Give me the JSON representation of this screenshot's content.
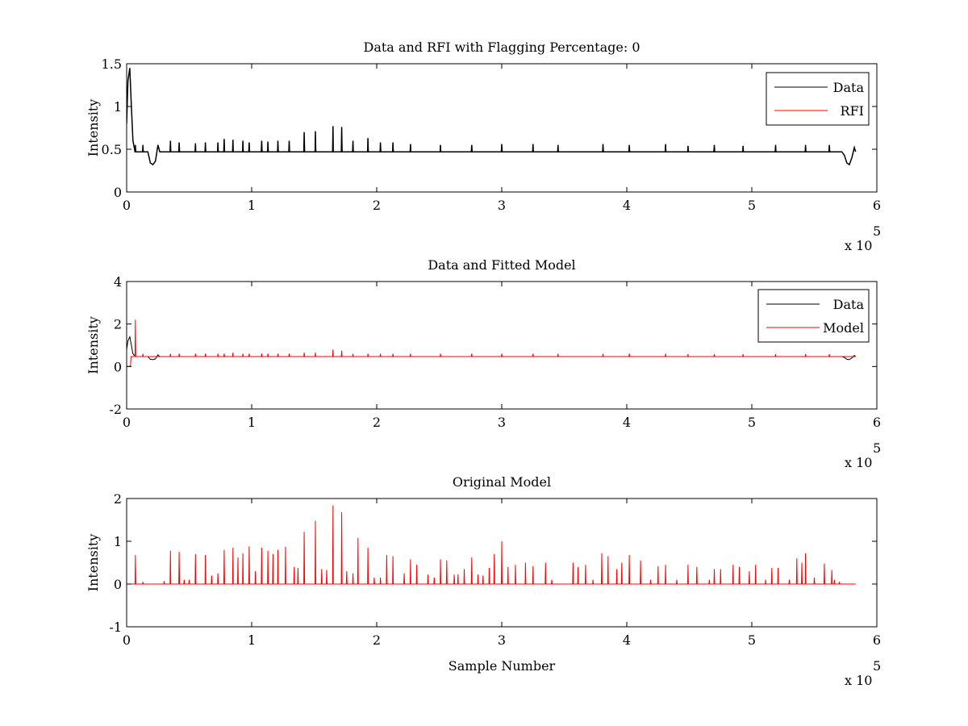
{
  "chart_data": [
    {
      "type": "line",
      "title": "Data and RFI with Flagging Percentage: 0",
      "xlabel": "",
      "ylabel": "Intensity",
      "xlim": [
        0,
        600000
      ],
      "ylim": [
        0,
        1.5
      ],
      "xticks": [
        0,
        100000,
        200000,
        300000,
        400000,
        500000,
        600000
      ],
      "xtick_labels": [
        "0",
        "1",
        "2",
        "3",
        "4",
        "5",
        "6"
      ],
      "yticks": [
        0,
        0.5,
        1,
        1.5
      ],
      "ytick_labels": [
        "0",
        "0.5",
        "1",
        "1.5"
      ],
      "x_exponent": {
        "base": "x 10",
        "power": "5"
      },
      "grid": false,
      "legend_position": "top-right",
      "baseline": 0.47,
      "x_end": 583000,
      "series": [
        {
          "name": "Data",
          "color": "#000000",
          "profile": [
            [
              0,
              0.8
            ],
            [
              1000,
              1.3
            ],
            [
              2500,
              1.45
            ],
            [
              3500,
              1.1
            ],
            [
              5000,
              0.6
            ],
            [
              7000,
              0.47
            ],
            [
              17000,
              0.47
            ],
            [
              19000,
              0.34
            ],
            [
              21000,
              0.32
            ],
            [
              23000,
              0.36
            ],
            [
              25000,
              0.55
            ],
            [
              26500,
              0.47
            ],
            [
              572000,
              0.47
            ],
            [
              574000,
              0.43
            ],
            [
              576000,
              0.34
            ],
            [
              578000,
              0.32
            ],
            [
              580000,
              0.4
            ],
            [
              582000,
              0.52
            ],
            [
              583000,
              0.47
            ]
          ],
          "spikes": [
            [
              7000,
              0.55
            ],
            [
              13000,
              0.55
            ],
            [
              35000,
              0.6
            ],
            [
              42000,
              0.58
            ],
            [
              55000,
              0.57
            ],
            [
              63000,
              0.58
            ],
            [
              73000,
              0.58
            ],
            [
              78000,
              0.62
            ],
            [
              85000,
              0.61
            ],
            [
              93000,
              0.6
            ],
            [
              98000,
              0.58
            ],
            [
              108000,
              0.6
            ],
            [
              113000,
              0.59
            ],
            [
              121000,
              0.6
            ],
            [
              130000,
              0.6
            ],
            [
              142000,
              0.7
            ],
            [
              151000,
              0.71
            ],
            [
              165000,
              0.77
            ],
            [
              172000,
              0.76
            ],
            [
              181000,
              0.6
            ],
            [
              193000,
              0.63
            ],
            [
              203000,
              0.58
            ],
            [
              213000,
              0.58
            ],
            [
              227000,
              0.56
            ],
            [
              251000,
              0.55
            ],
            [
              276000,
              0.55
            ],
            [
              300000,
              0.56
            ],
            [
              325000,
              0.56
            ],
            [
              345000,
              0.55
            ],
            [
              381000,
              0.56
            ],
            [
              402000,
              0.55
            ],
            [
              431000,
              0.56
            ],
            [
              449000,
              0.54
            ],
            [
              470000,
              0.55
            ],
            [
              493000,
              0.54
            ],
            [
              519000,
              0.55
            ],
            [
              543000,
              0.55
            ],
            [
              562000,
              0.55
            ]
          ]
        },
        {
          "name": "RFI",
          "color": "#ff0000",
          "profile": [],
          "spikes": []
        }
      ]
    },
    {
      "type": "line",
      "title": "Data and Fitted Model",
      "xlabel": "",
      "ylabel": "Intensity",
      "xlim": [
        0,
        600000
      ],
      "ylim": [
        -2,
        4
      ],
      "xticks": [
        0,
        100000,
        200000,
        300000,
        400000,
        500000,
        600000
      ],
      "xtick_labels": [
        "0",
        "1",
        "2",
        "3",
        "4",
        "5",
        "6"
      ],
      "yticks": [
        -2,
        0,
        2,
        4
      ],
      "ytick_labels": [
        "-2",
        "0",
        "2",
        "4"
      ],
      "x_exponent": {
        "base": "x 10",
        "power": "5"
      },
      "grid": false,
      "legend_position": "top-right",
      "baseline": 0.47,
      "x_end": 583000,
      "series": [
        {
          "name": "Data",
          "color": "#000000",
          "profile": [
            [
              0,
              0.8
            ],
            [
              1000,
              1.2
            ],
            [
              2500,
              1.4
            ],
            [
              3500,
              1.1
            ],
            [
              5000,
              0.6
            ],
            [
              7000,
              0.47
            ],
            [
              17000,
              0.47
            ],
            [
              19000,
              0.34
            ],
            [
              21000,
              0.32
            ],
            [
              23000,
              0.36
            ],
            [
              25000,
              0.55
            ],
            [
              26500,
              0.47
            ],
            [
              572000,
              0.47
            ],
            [
              574000,
              0.43
            ],
            [
              576000,
              0.34
            ],
            [
              578000,
              0.32
            ],
            [
              580000,
              0.4
            ],
            [
              582000,
              0.52
            ],
            [
              583000,
              0.47
            ]
          ],
          "spikes": []
        },
        {
          "name": "Model",
          "color": "#ff0000",
          "profile": [
            [
              0,
              0
            ],
            [
              3000,
              0
            ],
            [
              3500,
              0.47
            ],
            [
              583000,
              0.47
            ]
          ],
          "spikes": [
            [
              7000,
              2.2
            ],
            [
              13000,
              0.6
            ],
            [
              35000,
              0.6
            ],
            [
              42000,
              0.6
            ],
            [
              55000,
              0.6
            ],
            [
              63000,
              0.6
            ],
            [
              73000,
              0.6
            ],
            [
              78000,
              0.6
            ],
            [
              85000,
              0.65
            ],
            [
              93000,
              0.6
            ],
            [
              98000,
              0.6
            ],
            [
              108000,
              0.6
            ],
            [
              113000,
              0.6
            ],
            [
              121000,
              0.6
            ],
            [
              130000,
              0.6
            ],
            [
              142000,
              0.65
            ],
            [
              151000,
              0.65
            ],
            [
              165000,
              0.8
            ],
            [
              172000,
              0.75
            ],
            [
              181000,
              0.6
            ],
            [
              193000,
              0.6
            ],
            [
              203000,
              0.6
            ],
            [
              213000,
              0.6
            ],
            [
              227000,
              0.6
            ],
            [
              251000,
              0.6
            ],
            [
              276000,
              0.6
            ],
            [
              300000,
              0.6
            ],
            [
              325000,
              0.6
            ],
            [
              345000,
              0.6
            ],
            [
              381000,
              0.6
            ],
            [
              402000,
              0.6
            ],
            [
              431000,
              0.6
            ],
            [
              449000,
              0.58
            ],
            [
              470000,
              0.58
            ],
            [
              493000,
              0.58
            ],
            [
              519000,
              0.58
            ],
            [
              543000,
              0.58
            ],
            [
              562000,
              0.58
            ]
          ]
        }
      ]
    },
    {
      "type": "line",
      "title": "Original Model",
      "xlabel": "Sample Number",
      "ylabel": "Intensity",
      "xlim": [
        0,
        600000
      ],
      "ylim": [
        -1,
        2
      ],
      "xticks": [
        0,
        100000,
        200000,
        300000,
        400000,
        500000,
        600000
      ],
      "xtick_labels": [
        "0",
        "1",
        "2",
        "3",
        "4",
        "5",
        "6"
      ],
      "yticks": [
        -1,
        0,
        1,
        2
      ],
      "ytick_labels": [
        "-1",
        "0",
        "1",
        "2"
      ],
      "x_exponent": {
        "base": "x 10",
        "power": "5"
      },
      "grid": false,
      "legend_position": "",
      "baseline": 0,
      "x_end": 583000,
      "series": [
        {
          "name": "",
          "color": "#ff0000",
          "profile": [
            [
              0,
              0
            ],
            [
              583000,
              0
            ]
          ],
          "spikes": [
            [
              7000,
              0.68
            ],
            [
              13000,
              0.05
            ],
            [
              30000,
              0.07
            ],
            [
              35000,
              0.78
            ],
            [
              42000,
              0.75
            ],
            [
              46000,
              0.1
            ],
            [
              50000,
              0.1
            ],
            [
              55000,
              0.7
            ],
            [
              63000,
              0.68
            ],
            [
              68000,
              0.2
            ],
            [
              73000,
              0.25
            ],
            [
              78000,
              0.8
            ],
            [
              85000,
              0.85
            ],
            [
              89000,
              0.62
            ],
            [
              93000,
              0.72
            ],
            [
              98000,
              0.88
            ],
            [
              103000,
              0.3
            ],
            [
              108000,
              0.85
            ],
            [
              113000,
              0.78
            ],
            [
              117000,
              0.7
            ],
            [
              121000,
              0.8
            ],
            [
              127000,
              0.87
            ],
            [
              134000,
              0.4
            ],
            [
              137000,
              0.38
            ],
            [
              142000,
              1.22
            ],
            [
              151000,
              1.48
            ],
            [
              156000,
              0.35
            ],
            [
              160000,
              0.33
            ],
            [
              165000,
              1.84
            ],
            [
              172000,
              1.68
            ],
            [
              176000,
              0.3
            ],
            [
              181000,
              0.25
            ],
            [
              185000,
              1.08
            ],
            [
              193000,
              0.85
            ],
            [
              198000,
              0.15
            ],
            [
              203000,
              0.15
            ],
            [
              208000,
              0.68
            ],
            [
              213000,
              0.65
            ],
            [
              222000,
              0.25
            ],
            [
              227000,
              0.58
            ],
            [
              232000,
              0.45
            ],
            [
              241000,
              0.22
            ],
            [
              246000,
              0.15
            ],
            [
              251000,
              0.58
            ],
            [
              256000,
              0.55
            ],
            [
              262000,
              0.22
            ],
            [
              265000,
              0.23
            ],
            [
              270000,
              0.35
            ],
            [
              276000,
              0.62
            ],
            [
              281000,
              0.22
            ],
            [
              285000,
              0.2
            ],
            [
              290000,
              0.38
            ],
            [
              294000,
              0.7
            ],
            [
              300000,
              1.0
            ],
            [
              305000,
              0.4
            ],
            [
              311000,
              0.45
            ],
            [
              319000,
              0.5
            ],
            [
              325000,
              0.42
            ],
            [
              335000,
              0.5
            ],
            [
              340000,
              0.1
            ],
            [
              357000,
              0.5
            ],
            [
              361000,
              0.4
            ],
            [
              367000,
              0.45
            ],
            [
              373000,
              0.1
            ],
            [
              380000,
              0.72
            ],
            [
              385000,
              0.65
            ],
            [
              392000,
              0.35
            ],
            [
              396000,
              0.5
            ],
            [
              402000,
              0.68
            ],
            [
              411000,
              0.55
            ],
            [
              419000,
              0.1
            ],
            [
              425000,
              0.42
            ],
            [
              431000,
              0.45
            ],
            [
              440000,
              0.1
            ],
            [
              449000,
              0.45
            ],
            [
              456000,
              0.4
            ],
            [
              466000,
              0.1
            ],
            [
              470000,
              0.35
            ],
            [
              475000,
              0.35
            ],
            [
              485000,
              0.45
            ],
            [
              490000,
              0.4
            ],
            [
              498000,
              0.3
            ],
            [
              503000,
              0.45
            ],
            [
              511000,
              0.1
            ],
            [
              516000,
              0.38
            ],
            [
              521000,
              0.38
            ],
            [
              530000,
              0.1
            ],
            [
              536000,
              0.6
            ],
            [
              540000,
              0.5
            ],
            [
              543000,
              0.72
            ],
            [
              550000,
              0.15
            ],
            [
              558000,
              0.48
            ],
            [
              564000,
              0.33
            ],
            [
              566000,
              0.1
            ],
            [
              570000,
              0.05
            ]
          ]
        }
      ]
    }
  ]
}
